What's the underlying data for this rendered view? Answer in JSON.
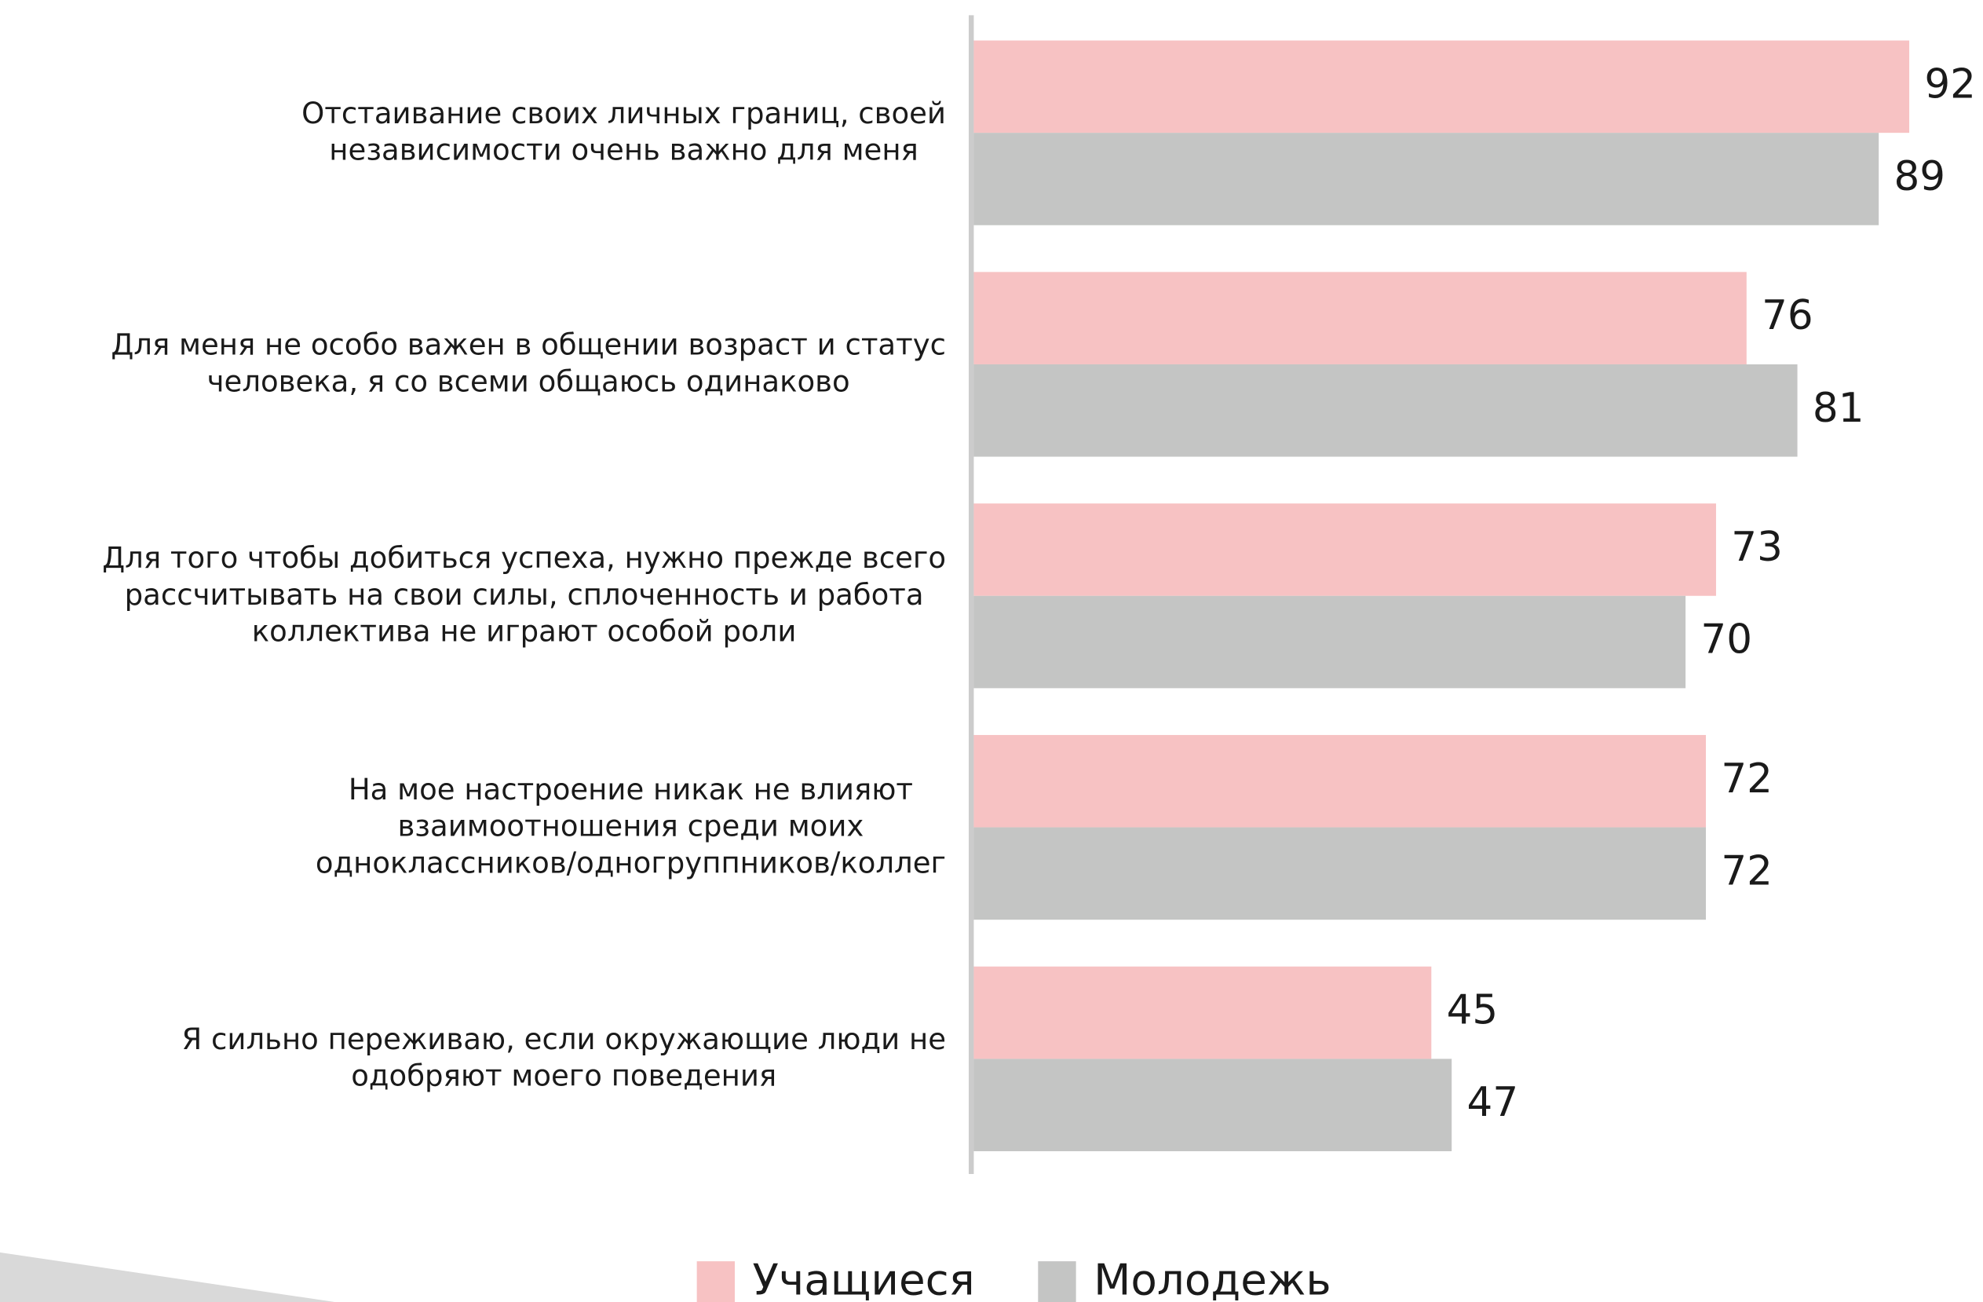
{
  "chart_data": {
    "type": "bar",
    "orientation": "horizontal",
    "categories": [
      "Отстаивание своих личных границ, своей\nнезависимости очень важно для меня",
      "Для меня не особо важен в общении возраст и статус\nчеловека, я со всеми общаюсь одинаково",
      "Для того чтобы добиться успеха, нужно прежде всего\nрассчитывать на свои силы, сплоченность и работа\nколлектива не играют особой роли",
      "На мое настроение никак не влияют\nвзаимоотношения среди моих\nодноклассников/одногруппников/коллег",
      "Я сильно переживаю, если окружающие люди не\nодобряют моего поведения"
    ],
    "series": [
      {
        "name": "Учащиеся",
        "color": "#f7c2c3",
        "values": [
          92,
          76,
          73,
          72,
          45
        ]
      },
      {
        "name": "Молодежь",
        "color": "#c4c5c4",
        "values": [
          89,
          81,
          70,
          72,
          47
        ]
      }
    ],
    "xlim": [
      0,
      100
    ],
    "legend": "bottom"
  }
}
